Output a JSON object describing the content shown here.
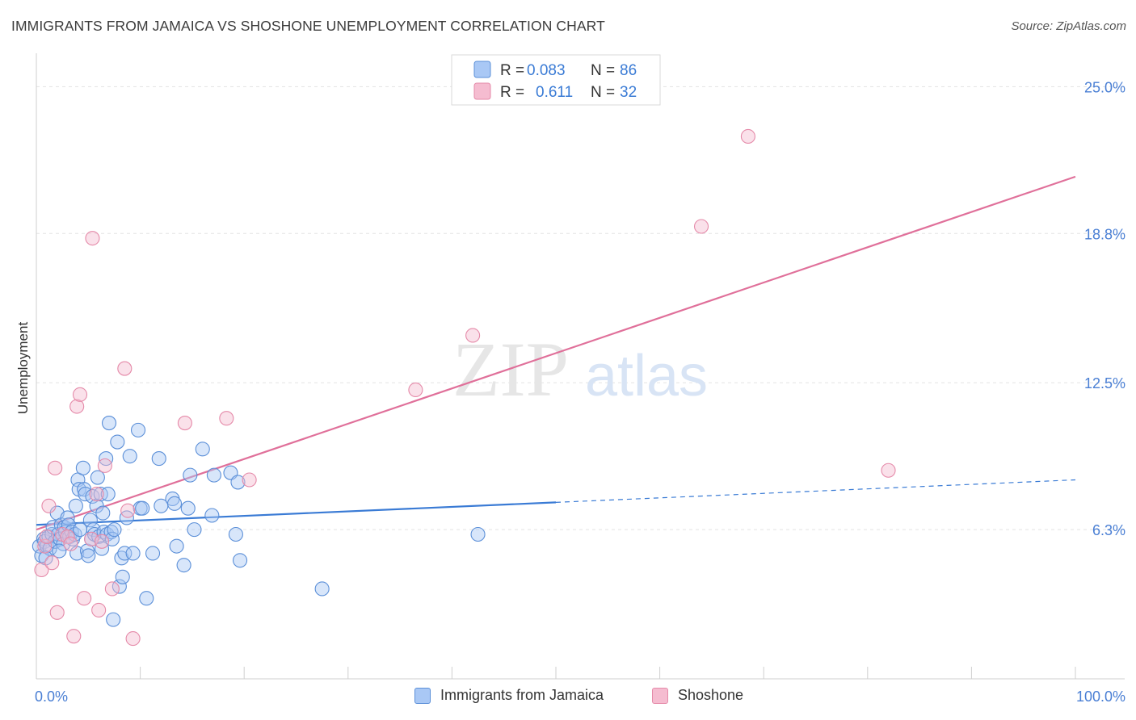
{
  "title": "IMMIGRANTS FROM JAMAICA VS SHOSHONE UNEMPLOYMENT CORRELATION CHART",
  "source": "Source: ZipAtlas.com",
  "watermark": {
    "zip": "ZIP",
    "atlas": "atlas"
  },
  "legend": {
    "rows": [
      {
        "r_label": "R =",
        "r_value": "0.083",
        "n_label": "N =",
        "n_value": "86"
      },
      {
        "r_label": "R =",
        "r_value": "0.611",
        "n_label": "N =",
        "n_value": "32"
      }
    ]
  },
  "bottom_legend": {
    "series1": "Immigrants from Jamaica",
    "series2": "Shoshone"
  },
  "colors": {
    "blue_fill": "#a9c8f5",
    "blue_stroke": "#5b8fd8",
    "blue_line": "#3a7bd5",
    "pink_fill": "#f5bcd0",
    "pink_stroke": "#e58aa9",
    "pink_line": "#e0709a",
    "tick": "#4a7fd4",
    "grid": "#e3e3e3"
  },
  "chart_data": {
    "type": "scatter",
    "title": "IMMIGRANTS FROM JAMAICA VS SHOSHONE UNEMPLOYMENT CORRELATION CHART",
    "xlabel": "",
    "ylabel": "Unemployment",
    "xlim": [
      0,
      100
    ],
    "ylim": [
      0,
      26
    ],
    "x_tick_labels": [
      "0.0%",
      "100.0%"
    ],
    "y_ticks": [
      6.3,
      12.5,
      18.8,
      25.0
    ],
    "y_tick_labels": [
      "6.3%",
      "12.5%",
      "18.8%",
      "25.0%"
    ],
    "legend_position": "top-center",
    "series": [
      {
        "name": "Immigrants from Jamaica",
        "r": 0.083,
        "n": 86,
        "trend": {
          "x0": 0,
          "y0": 6.5,
          "x_solid_end": 50,
          "x1": 100,
          "y1": 8.4
        },
        "points": [
          [
            0.3,
            5.6
          ],
          [
            0.5,
            5.2
          ],
          [
            0.7,
            5.9
          ],
          [
            0.8,
            5.8
          ],
          [
            1.0,
            5.6
          ],
          [
            1.2,
            6.0
          ],
          [
            1.3,
            5.5
          ],
          [
            1.5,
            6.1
          ],
          [
            1.6,
            6.4
          ],
          [
            1.8,
            5.8
          ],
          [
            2.0,
            7.0
          ],
          [
            2.1,
            6.1
          ],
          [
            2.3,
            5.9
          ],
          [
            2.4,
            6.5
          ],
          [
            2.6,
            5.7
          ],
          [
            2.7,
            6.4
          ],
          [
            2.8,
            6.2
          ],
          [
            3.0,
            6.8
          ],
          [
            3.1,
            6.5
          ],
          [
            3.2,
            6.0
          ],
          [
            3.4,
            6.2
          ],
          [
            3.5,
            5.9
          ],
          [
            3.7,
            6.1
          ],
          [
            3.8,
            7.3
          ],
          [
            3.9,
            5.3
          ],
          [
            4.0,
            8.4
          ],
          [
            4.1,
            8.0
          ],
          [
            4.2,
            6.3
          ],
          [
            4.5,
            8.9
          ],
          [
            4.6,
            8.0
          ],
          [
            4.7,
            7.8
          ],
          [
            4.9,
            5.4
          ],
          [
            5.0,
            5.2
          ],
          [
            5.2,
            6.7
          ],
          [
            5.3,
            5.9
          ],
          [
            5.4,
            7.7
          ],
          [
            5.5,
            6.3
          ],
          [
            5.6,
            6.1
          ],
          [
            5.8,
            7.3
          ],
          [
            5.9,
            8.5
          ],
          [
            6.0,
            6.0
          ],
          [
            6.2,
            7.8
          ],
          [
            6.3,
            5.5
          ],
          [
            6.4,
            7.0
          ],
          [
            6.5,
            6.2
          ],
          [
            6.7,
            9.3
          ],
          [
            6.8,
            6.1
          ],
          [
            6.9,
            7.8
          ],
          [
            7.0,
            10.8
          ],
          [
            7.2,
            6.2
          ],
          [
            7.3,
            5.9
          ],
          [
            7.4,
            2.5
          ],
          [
            7.5,
            6.3
          ],
          [
            7.8,
            10.0
          ],
          [
            8.0,
            3.9
          ],
          [
            8.2,
            5.1
          ],
          [
            8.3,
            4.3
          ],
          [
            8.5,
            5.3
          ],
          [
            8.7,
            6.8
          ],
          [
            9.0,
            9.4
          ],
          [
            9.3,
            5.3
          ],
          [
            9.8,
            10.5
          ],
          [
            10.0,
            7.2
          ],
          [
            10.2,
            7.2
          ],
          [
            10.6,
            3.4
          ],
          [
            11.2,
            5.3
          ],
          [
            11.8,
            9.3
          ],
          [
            12.0,
            7.3
          ],
          [
            13.1,
            7.6
          ],
          [
            13.3,
            7.4
          ],
          [
            13.5,
            5.6
          ],
          [
            14.2,
            4.8
          ],
          [
            14.6,
            7.2
          ],
          [
            14.8,
            8.6
          ],
          [
            15.2,
            6.3
          ],
          [
            16.0,
            9.7
          ],
          [
            16.9,
            6.9
          ],
          [
            17.1,
            8.6
          ],
          [
            18.7,
            8.7
          ],
          [
            19.2,
            6.1
          ],
          [
            19.4,
            8.3
          ],
          [
            19.6,
            5.0
          ],
          [
            27.5,
            3.8
          ],
          [
            42.5,
            6.1
          ],
          [
            0.9,
            5.1
          ],
          [
            2.2,
            5.4
          ]
        ]
      },
      {
        "name": "Shoshone",
        "r": 0.611,
        "n": 32,
        "trend": {
          "x0": 0,
          "y0": 6.3,
          "x1": 100,
          "y1": 21.2
        },
        "points": [
          [
            0.5,
            4.6
          ],
          [
            0.8,
            5.6
          ],
          [
            1.0,
            6.0
          ],
          [
            1.2,
            7.3
          ],
          [
            1.5,
            4.9
          ],
          [
            1.8,
            8.9
          ],
          [
            2.0,
            2.8
          ],
          [
            2.5,
            6.1
          ],
          [
            3.0,
            6.0
          ],
          [
            3.3,
            5.7
          ],
          [
            3.6,
            1.8
          ],
          [
            3.9,
            11.5
          ],
          [
            4.2,
            12.0
          ],
          [
            4.6,
            3.4
          ],
          [
            5.3,
            5.9
          ],
          [
            5.4,
            18.6
          ],
          [
            5.8,
            7.8
          ],
          [
            6.0,
            2.9
          ],
          [
            6.3,
            5.8
          ],
          [
            6.6,
            9.0
          ],
          [
            7.3,
            3.8
          ],
          [
            8.5,
            13.1
          ],
          [
            8.8,
            7.1
          ],
          [
            9.3,
            1.7
          ],
          [
            14.3,
            10.8
          ],
          [
            18.3,
            11.0
          ],
          [
            20.5,
            8.4
          ],
          [
            42.0,
            14.5
          ],
          [
            36.5,
            12.2
          ],
          [
            64.0,
            19.1
          ],
          [
            68.5,
            22.9
          ],
          [
            82.0,
            8.8
          ]
        ]
      }
    ]
  }
}
